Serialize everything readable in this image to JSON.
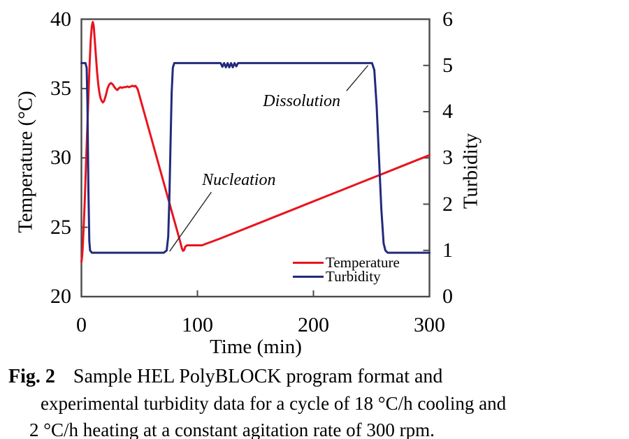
{
  "figure": {
    "caption": {
      "label": "Fig. 2",
      "line1": "Sample HEL PolyBLOCK program format and",
      "line2": "experimental turbidity data for a cycle of 18 °C/h cooling and",
      "line3": "2 °C/h heating at a constant agitation rate of 300 rpm."
    }
  },
  "chart_data": {
    "type": "line",
    "title": "",
    "xlabel": "Time (min)",
    "ylabel_left": "Temperature (°C)",
    "ylabel_right": "Turbidity",
    "xlim": [
      0,
      300
    ],
    "ylim_left": [
      20,
      40
    ],
    "ylim_right": [
      0,
      6
    ],
    "xticks": [
      0,
      100,
      200,
      300
    ],
    "yticks_left": [
      20,
      25,
      30,
      35,
      40
    ],
    "yticks_right": [
      0,
      1,
      2,
      3,
      4,
      5,
      6
    ],
    "grid": false,
    "legend_position": "inside-bottom-right",
    "colors": {
      "temperature": "#e8141e",
      "turbidity": "#232a7c",
      "axis": "#4a4a4a",
      "leader": "#1a1a1a"
    },
    "annotations": [
      {
        "text": "Dissolution",
        "label_t": 156.5,
        "label_v": 4.42,
        "line_from": [
          228.5,
          4.45
        ],
        "line_to": [
          247,
          5.0
        ]
      },
      {
        "text": "Nucleation",
        "label_t": 104,
        "label_v": 2.72,
        "line_from": [
          112,
          2.26
        ],
        "line_to": [
          76,
          0.98
        ]
      }
    ],
    "series": [
      {
        "name": "Temperature",
        "axis": "left",
        "color": "#e8141e",
        "points": [
          [
            0,
            22.5
          ],
          [
            0.5,
            22.8
          ],
          [
            1,
            23.4
          ],
          [
            2,
            25.1
          ],
          [
            3,
            27.2
          ],
          [
            4,
            29.6
          ],
          [
            5,
            32.0
          ],
          [
            6,
            34.4
          ],
          [
            7,
            36.6
          ],
          [
            8,
            38.5
          ],
          [
            9,
            39.5
          ],
          [
            9.8,
            39.8
          ],
          [
            10.6,
            39.5
          ],
          [
            11.5,
            38.5
          ],
          [
            12.5,
            37.3
          ],
          [
            13.5,
            36.2
          ],
          [
            14.5,
            35.3
          ],
          [
            15.5,
            34.7
          ],
          [
            16.5,
            34.3
          ],
          [
            17.5,
            34.1
          ],
          [
            18.5,
            34.0
          ],
          [
            19.5,
            34.1
          ],
          [
            21,
            34.5
          ],
          [
            22.5,
            35.0
          ],
          [
            24,
            35.3
          ],
          [
            25.5,
            35.4
          ],
          [
            27,
            35.3
          ],
          [
            28.5,
            35.1
          ],
          [
            30,
            34.95
          ],
          [
            31,
            34.9
          ],
          [
            32,
            35.0
          ],
          [
            33.5,
            35.1
          ],
          [
            35,
            35.05
          ],
          [
            36.5,
            35.1
          ],
          [
            38,
            35.1
          ],
          [
            39.5,
            35.15
          ],
          [
            41,
            35.1
          ],
          [
            42.5,
            35.15
          ],
          [
            44,
            35.2
          ],
          [
            45.5,
            35.15
          ],
          [
            46.5,
            35.2
          ],
          [
            47.5,
            35.1
          ],
          [
            48.5,
            34.95
          ],
          [
            50,
            34.5
          ],
          [
            55,
            33.0
          ],
          [
            60,
            31.5
          ],
          [
            65,
            30.0
          ],
          [
            70,
            28.5
          ],
          [
            75,
            27.0
          ],
          [
            80,
            25.5
          ],
          [
            83,
            24.6
          ],
          [
            85,
            24.0
          ],
          [
            86.5,
            23.5
          ],
          [
            87.5,
            23.3
          ],
          [
            88.5,
            23.35
          ],
          [
            89.5,
            23.6
          ],
          [
            91,
            23.7
          ],
          [
            94,
            23.7
          ],
          [
            98,
            23.7
          ],
          [
            102,
            23.7
          ],
          [
            104,
            23.7
          ],
          [
            107,
            23.8
          ],
          [
            112,
            23.95
          ],
          [
            120,
            24.2
          ],
          [
            135,
            24.7
          ],
          [
            150,
            25.2
          ],
          [
            165,
            25.7
          ],
          [
            180,
            26.2
          ],
          [
            195,
            26.7
          ],
          [
            210,
            27.2
          ],
          [
            225,
            27.7
          ],
          [
            240,
            28.2
          ],
          [
            255,
            28.7
          ],
          [
            270,
            29.2
          ],
          [
            285,
            29.7
          ],
          [
            300,
            30.2
          ]
        ]
      },
      {
        "name": "Turbidity",
        "axis": "right",
        "color": "#232a7c",
        "points": [
          [
            0,
            5.05
          ],
          [
            3.5,
            5.05
          ],
          [
            4.5,
            4.95
          ],
          [
            5.2,
            4.2
          ],
          [
            6,
            2.3
          ],
          [
            6.8,
            1.2
          ],
          [
            7.5,
            1.0
          ],
          [
            9,
            0.95
          ],
          [
            15,
            0.95
          ],
          [
            25,
            0.95
          ],
          [
            35,
            0.95
          ],
          [
            45,
            0.95
          ],
          [
            55,
            0.95
          ],
          [
            65,
            0.95
          ],
          [
            71,
            0.95
          ],
          [
            73.5,
            1.0
          ],
          [
            74.8,
            1.3
          ],
          [
            75.8,
            2.1
          ],
          [
            76.8,
            3.3
          ],
          [
            77.8,
            4.4
          ],
          [
            78.8,
            4.95
          ],
          [
            80,
            5.05
          ],
          [
            90,
            5.05
          ],
          [
            105,
            5.05
          ],
          [
            120,
            5.05
          ],
          [
            121.5,
            4.97
          ],
          [
            123,
            5.05
          ],
          [
            124.5,
            4.96
          ],
          [
            126,
            5.05
          ],
          [
            127.5,
            4.96
          ],
          [
            129,
            5.05
          ],
          [
            130.5,
            4.96
          ],
          [
            132,
            5.05
          ],
          [
            133.5,
            4.98
          ],
          [
            135,
            5.05
          ],
          [
            150,
            5.05
          ],
          [
            175,
            5.05
          ],
          [
            200,
            5.05
          ],
          [
            225,
            5.05
          ],
          [
            245,
            5.05
          ],
          [
            250.5,
            5.05
          ],
          [
            252.5,
            4.9
          ],
          [
            254.5,
            4.1
          ],
          [
            256.5,
            3.0
          ],
          [
            258.5,
            1.9
          ],
          [
            260.5,
            1.15
          ],
          [
            262,
            1.0
          ],
          [
            264,
            0.95
          ],
          [
            275,
            0.95
          ],
          [
            290,
            0.95
          ],
          [
            300,
            0.95
          ]
        ]
      }
    ]
  }
}
